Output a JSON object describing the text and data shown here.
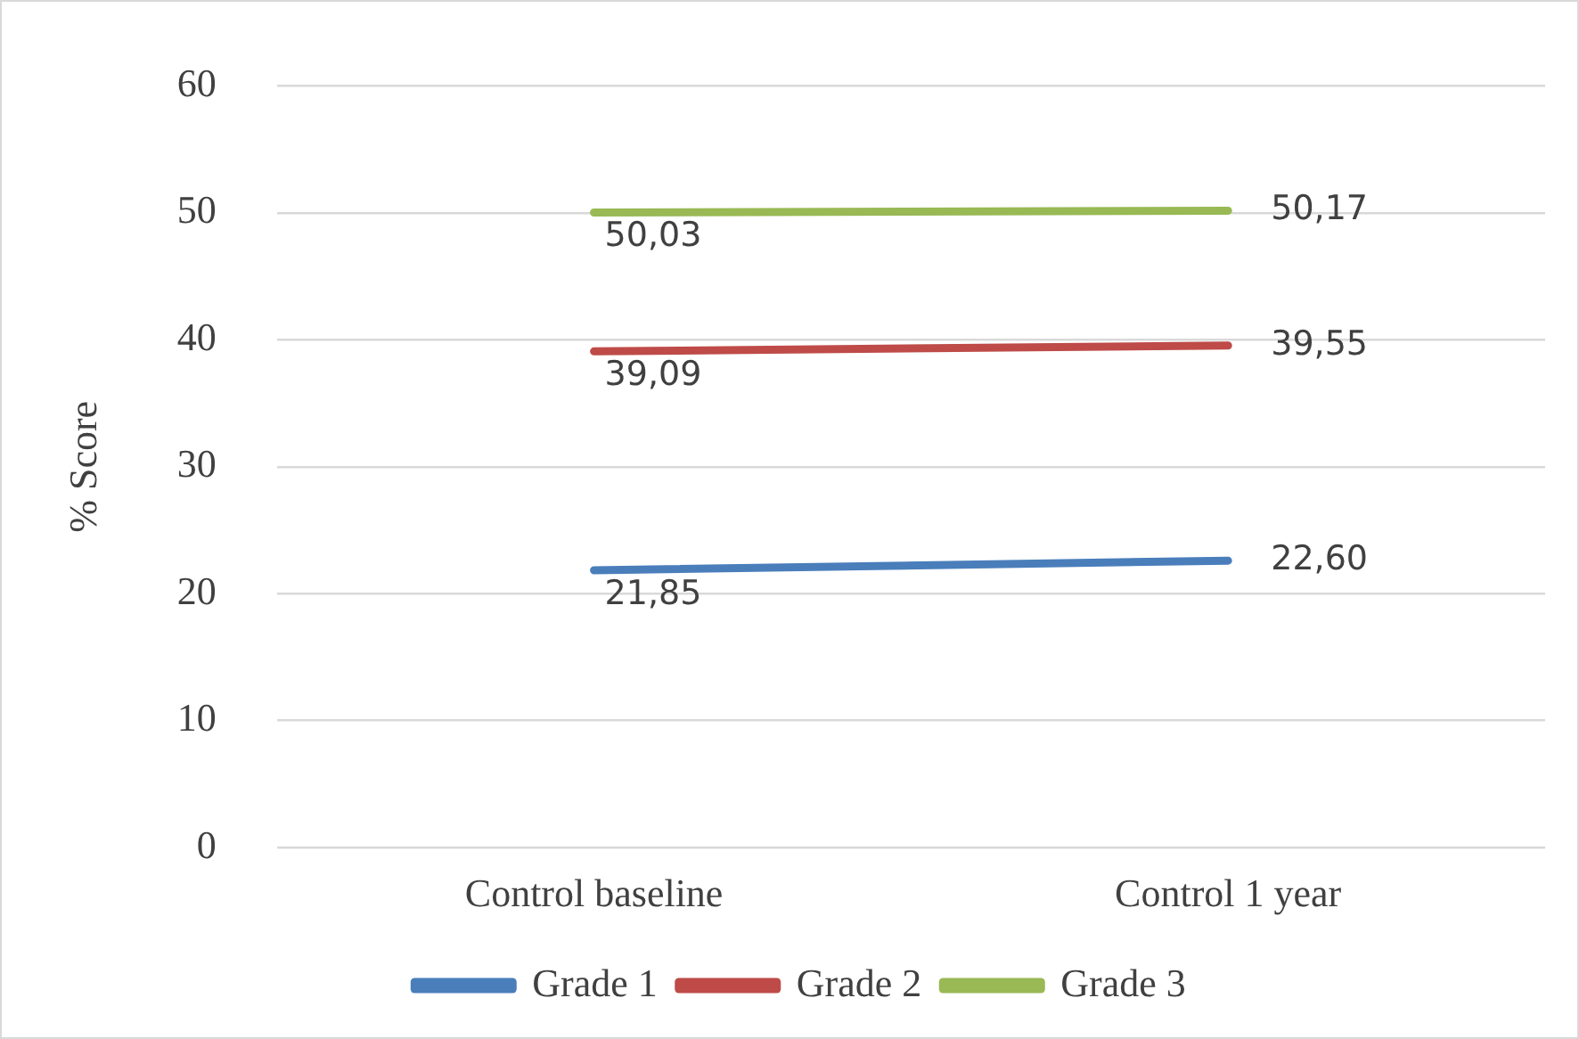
{
  "chart_data": {
    "type": "line",
    "ylabel": "% Score",
    "categories": [
      "Control baseline",
      "Control 1 year"
    ],
    "series": [
      {
        "name": "Grade 1",
        "color": "#4a7ebb",
        "values": [
          21.85,
          22.6
        ],
        "value_labels": [
          "21,85",
          "22,60"
        ]
      },
      {
        "name": "Grade 2",
        "color": "#be4b48",
        "values": [
          39.09,
          39.55
        ],
        "value_labels": [
          "39,09",
          "39,55"
        ]
      },
      {
        "name": "Grade 3",
        "color": "#98b954",
        "values": [
          50.03,
          50.17
        ],
        "value_labels": [
          "50,03",
          "50,17"
        ]
      }
    ],
    "ylim": [
      0,
      60
    ],
    "yticks": [
      0,
      10,
      20,
      30,
      40,
      50,
      60
    ],
    "grid": "y",
    "legend": "bottom",
    "marker": "none",
    "line_style": "solid"
  }
}
